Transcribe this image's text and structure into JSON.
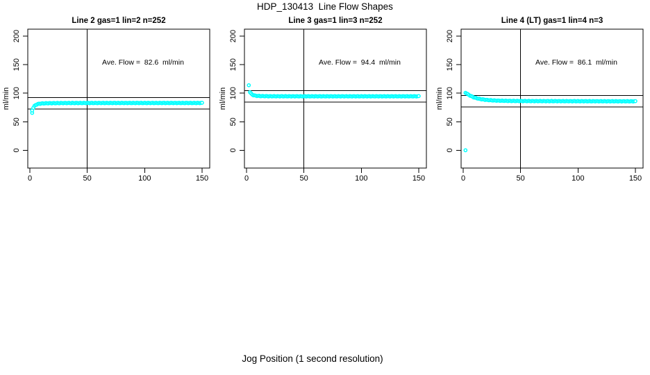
{
  "figure": {
    "title": "HDP_130413  Line Flow Shapes",
    "xlabel": "Jog Position (1 second resolution)"
  },
  "chart_data": {
    "type": "scatter",
    "title": "HDP_130413  Line Flow Shapes",
    "xlabel": "Jog Position (1 second resolution)",
    "ylabel": "ml/min",
    "xlim": [
      -2,
      157
    ],
    "ylim": [
      -31,
      212
    ],
    "x_ticks": [
      0,
      50,
      100,
      150
    ],
    "y_ticks": [
      0,
      50,
      100,
      150,
      200
    ],
    "grid": false,
    "legend": "none",
    "marker_color": "#00FFFF",
    "panels": [
      {
        "title": "Line 2 gas=1 lin=2 n=252",
        "ave_flow": 82.6,
        "ave_flow_label": "Ave. Flow =  82.6  ml/min",
        "ref_lines": [
          72.6,
          92.6
        ],
        "vline_x": 50,
        "outliers": [
          [
            2,
            65.5
          ]
        ],
        "series_keypoints": [
          [
            2,
            70
          ],
          [
            3,
            74.5
          ],
          [
            4,
            77.5
          ],
          [
            5,
            79.3
          ],
          [
            6,
            80.4
          ],
          [
            8,
            81.5
          ],
          [
            10,
            82
          ],
          [
            14,
            82.4
          ],
          [
            20,
            82.6
          ],
          [
            30,
            82.8
          ],
          [
            60,
            82.9
          ],
          [
            150,
            82.9
          ]
        ],
        "x_step": 1,
        "x_end": 150
      },
      {
        "title": "Line 3 gas=1 lin=3 n=252",
        "ave_flow": 94.4,
        "ave_flow_label": "Ave. Flow =  94.4  ml/min",
        "ref_lines": [
          84.4,
          104.4
        ],
        "vline_x": 50,
        "outliers": [
          [
            2,
            114
          ]
        ],
        "series_keypoints": [
          [
            3,
            102
          ],
          [
            4,
            99.2
          ],
          [
            5,
            97.6
          ],
          [
            6,
            96.6
          ],
          [
            8,
            95.6
          ],
          [
            12,
            95
          ],
          [
            20,
            94.7
          ],
          [
            50,
            94.6
          ],
          [
            150,
            94.6
          ]
        ],
        "x_step": 1,
        "x_end": 150
      },
      {
        "title": "Line 4 (LT) gas=1 lin=4 n=3",
        "ave_flow": 86.1,
        "ave_flow_label": "Ave. Flow =  86.1  ml/min",
        "ref_lines": [
          76.1,
          96.1
        ],
        "vline_x": 50,
        "outliers": [
          [
            2,
            0
          ]
        ],
        "series_keypoints": [
          [
            2,
            101
          ],
          [
            4,
            98.2
          ],
          [
            6,
            95.8
          ],
          [
            8,
            93.8
          ],
          [
            10,
            92.2
          ],
          [
            13,
            90.6
          ],
          [
            16,
            89.4
          ],
          [
            20,
            88.3
          ],
          [
            25,
            87.5
          ],
          [
            30,
            87
          ],
          [
            40,
            86.5
          ],
          [
            60,
            86.2
          ],
          [
            100,
            86
          ],
          [
            150,
            85.8
          ]
        ],
        "x_step": 1,
        "x_end": 150
      }
    ]
  }
}
